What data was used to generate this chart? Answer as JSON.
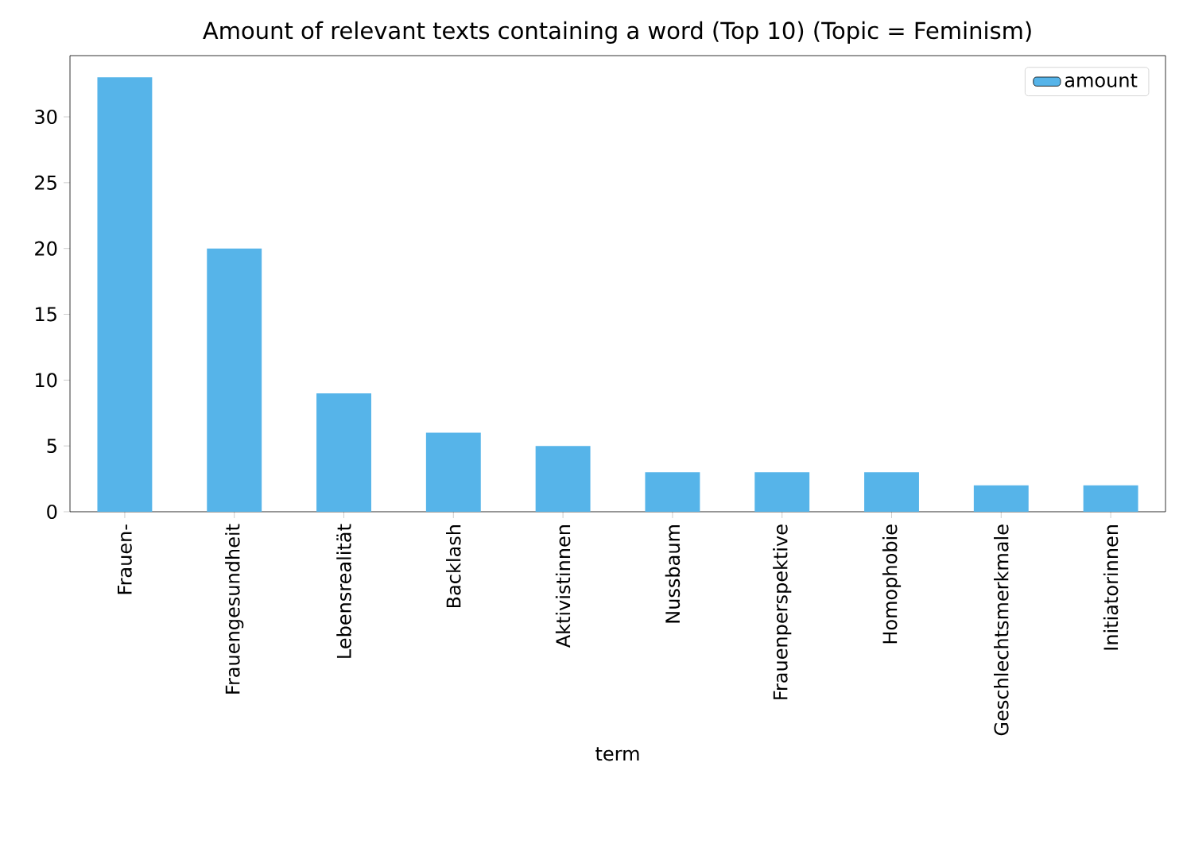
{
  "chart_data": {
    "type": "bar",
    "title": "Amount of relevant texts containing a word (Top 10) (Topic = Feminism)",
    "xlabel": "term",
    "categories": [
      "Frauen-",
      "Frauengesundheit",
      "Lebensrealität",
      "Backlash",
      "Aktivistinnen",
      "Nussbaum",
      "Frauenperspektive",
      "Homophobie",
      "Geschlechtsmerkmale",
      "Initiatorinnen"
    ],
    "series": [
      {
        "name": "amount",
        "color": "#56b4e9",
        "values": [
          33,
          20,
          9,
          6,
          5,
          3,
          3,
          3,
          2,
          2
        ]
      }
    ],
    "ylim": [
      0,
      34.65
    ],
    "yticks": [
      0,
      5,
      10,
      15,
      20,
      25,
      30
    ],
    "legend": "top right",
    "grid": false
  }
}
